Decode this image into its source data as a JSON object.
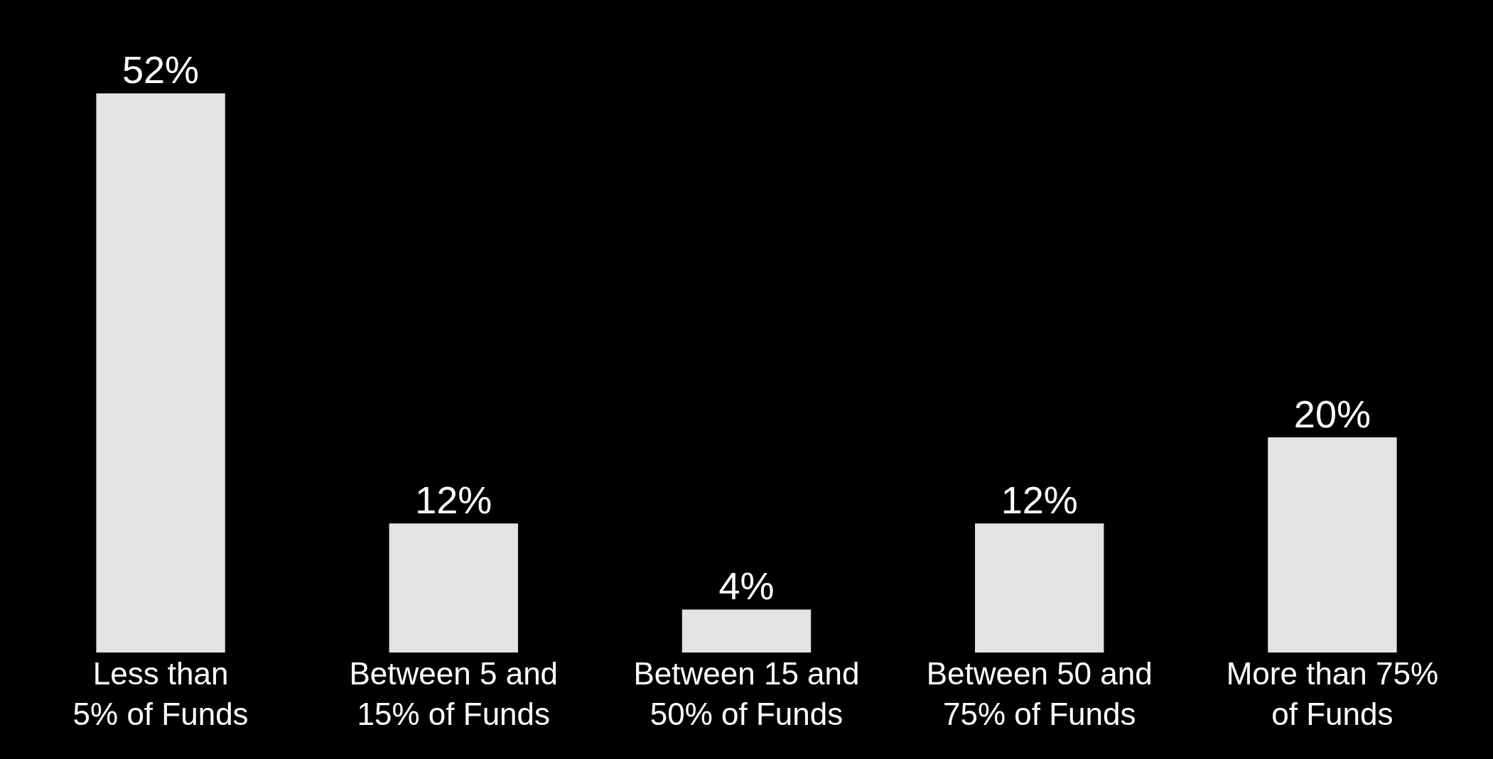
{
  "chart_data": {
    "type": "bar",
    "categories": [
      "Less than\n5% of Funds",
      "Between 5 and\n15% of Funds",
      "Between 15 and\n50% of Funds",
      "Between 50 and\n75% of Funds",
      "More than 75%\nof Funds"
    ],
    "values": [
      52,
      12,
      4,
      12,
      20
    ],
    "value_labels": [
      "52%",
      "12%",
      "4%",
      "12%",
      "20%"
    ],
    "color": "#e3e3e3"
  }
}
